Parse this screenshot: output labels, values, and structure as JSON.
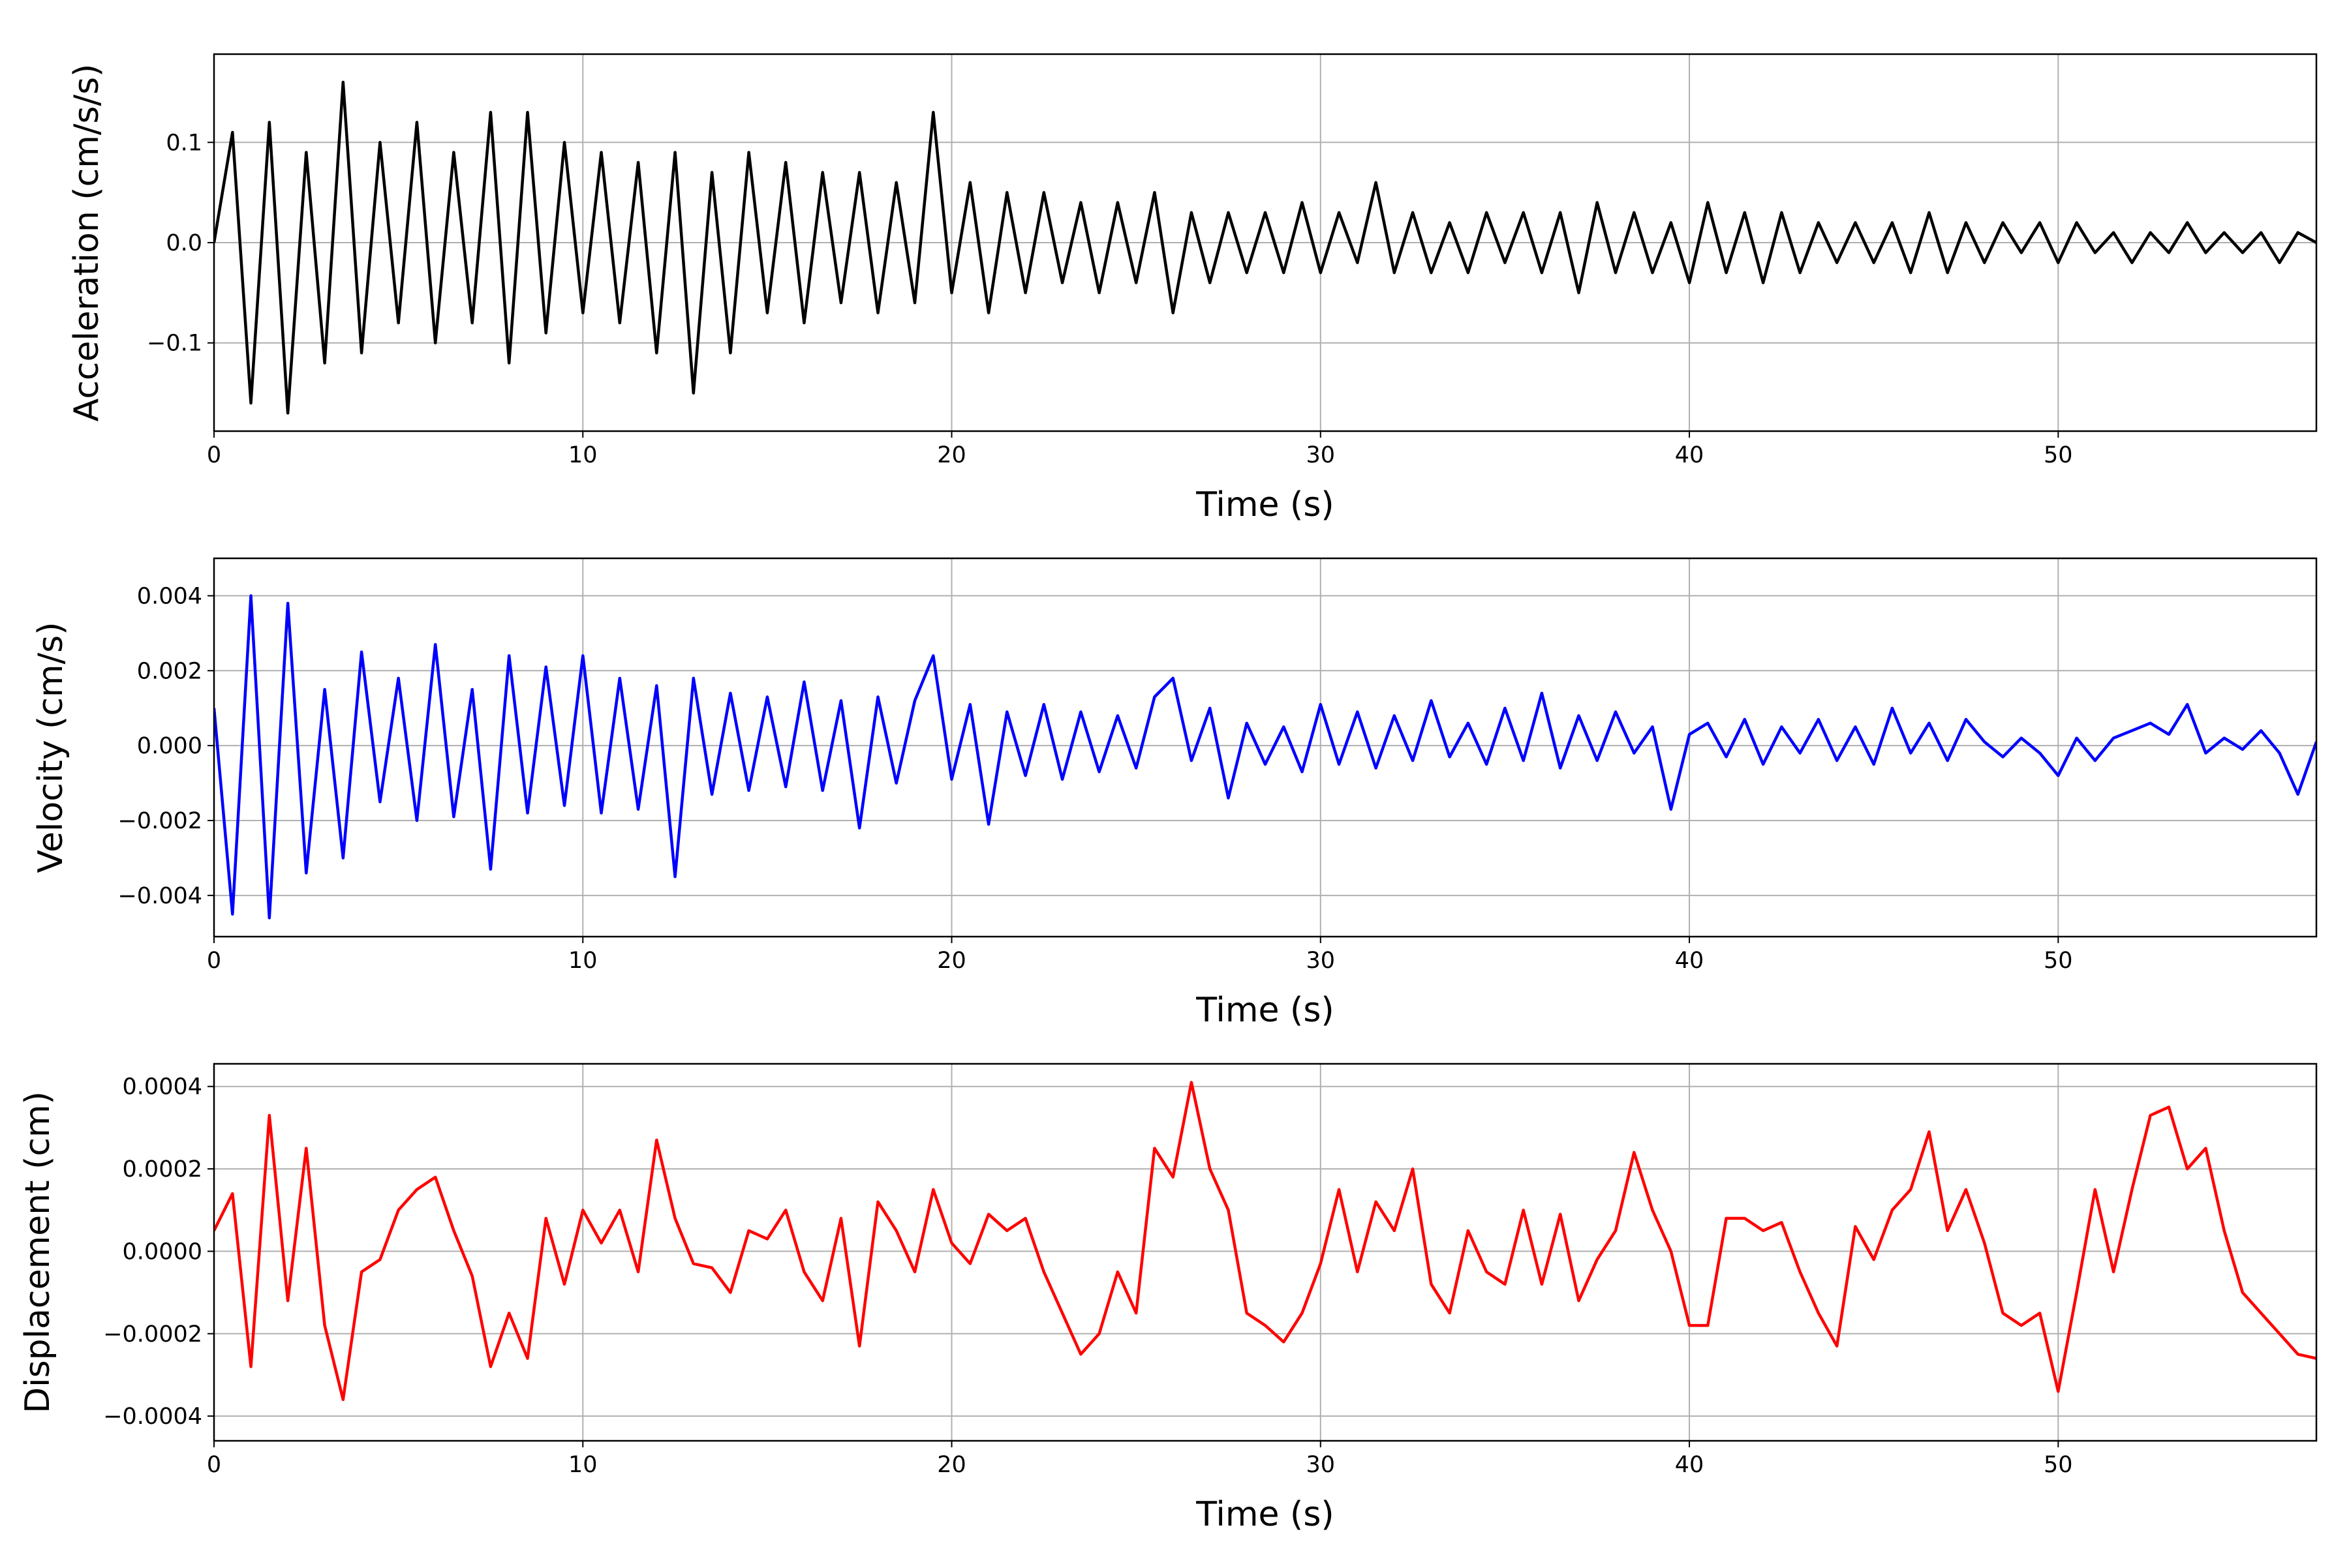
{
  "chart_data": [
    {
      "type": "line",
      "ylabel": "Acceleration (cm/s/s)",
      "xlabel": "Time (s)",
      "color": "#000000",
      "grid": true,
      "xlim": [
        0,
        57
      ],
      "xticks": [
        0,
        10,
        20,
        30,
        40,
        50
      ],
      "ylim": [
        -0.188,
        0.188
      ],
      "yticks": [
        {
          "value": -0.1,
          "label": "−0.1"
        },
        {
          "value": 0,
          "label": "0.0"
        },
        0.1
      ],
      "x": [
        0,
        0.5,
        1,
        1.5,
        2,
        2.5,
        3,
        3.5,
        4,
        4.5,
        5,
        5.5,
        6,
        6.5,
        7,
        7.5,
        8,
        8.5,
        9,
        9.5,
        10,
        10.5,
        11,
        11.5,
        12,
        12.5,
        13,
        13.5,
        14,
        14.5,
        15,
        15.5,
        16,
        16.5,
        17,
        17.5,
        18,
        18.5,
        19,
        19.5,
        20,
        20.5,
        21,
        21.5,
        22,
        22.5,
        23,
        23.5,
        24,
        24.5,
        25,
        25.5,
        26,
        26.5,
        27,
        27.5,
        28,
        28.5,
        29,
        29.5,
        30,
        30.5,
        31,
        31.5,
        32,
        32.5,
        33,
        33.5,
        34,
        34.5,
        35,
        35.5,
        36,
        36.5,
        37,
        37.5,
        38,
        38.5,
        39,
        39.5,
        40,
        40.5,
        41,
        41.5,
        42,
        42.5,
        43,
        43.5,
        44,
        44.5,
        45,
        45.5,
        46,
        46.5,
        47,
        47.5,
        48,
        48.5,
        49,
        49.5,
        50,
        50.5,
        51,
        51.5,
        52,
        52.5,
        53,
        53.5,
        54,
        54.5,
        55,
        55.5,
        56,
        56.5,
        57
      ],
      "values": [
        0.0,
        0.11,
        -0.16,
        0.12,
        -0.17,
        0.09,
        -0.12,
        0.16,
        -0.11,
        0.1,
        -0.08,
        0.12,
        -0.1,
        0.09,
        -0.08,
        0.13,
        -0.12,
        0.13,
        -0.09,
        0.1,
        -0.07,
        0.09,
        -0.08,
        0.08,
        -0.11,
        0.09,
        -0.15,
        0.07,
        -0.11,
        0.09,
        -0.07,
        0.08,
        -0.08,
        0.07,
        -0.06,
        0.07,
        -0.07,
        0.06,
        -0.06,
        0.13,
        -0.05,
        0.06,
        -0.07,
        0.05,
        -0.05,
        0.05,
        -0.04,
        0.04,
        -0.05,
        0.04,
        -0.04,
        0.05,
        -0.07,
        0.03,
        -0.04,
        0.03,
        -0.03,
        0.03,
        -0.03,
        0.04,
        -0.03,
        0.03,
        -0.02,
        0.06,
        -0.03,
        0.03,
        -0.03,
        0.02,
        -0.03,
        0.03,
        -0.02,
        0.03,
        -0.03,
        0.03,
        -0.05,
        0.04,
        -0.03,
        0.03,
        -0.03,
        0.02,
        -0.04,
        0.04,
        -0.03,
        0.03,
        -0.04,
        0.03,
        -0.03,
        0.02,
        -0.02,
        0.02,
        -0.02,
        0.02,
        -0.03,
        0.03,
        -0.03,
        0.02,
        -0.02,
        0.02,
        -0.01,
        0.02,
        -0.02,
        0.02,
        -0.01,
        0.01,
        -0.02,
        0.01,
        -0.01,
        0.02,
        -0.01,
        0.01,
        -0.01,
        0.01,
        -0.02,
        0.01,
        0.0
      ]
    },
    {
      "type": "line",
      "ylabel": "Velocity (cm/s)",
      "xlabel": "Time (s)",
      "color": "#0000ff",
      "grid": true,
      "xlim": [
        0,
        57
      ],
      "xticks": [
        0,
        10,
        20,
        30,
        40,
        50
      ],
      "ylim": [
        -0.0051,
        0.005
      ],
      "yticks": [
        {
          "value": -0.004,
          "label": "−0.004"
        },
        {
          "value": -0.002,
          "label": "−0.002"
        },
        {
          "value": 0,
          "label": "0.000"
        },
        0.002,
        0.004
      ],
      "x": [
        0,
        0.5,
        1,
        1.5,
        2,
        2.5,
        3,
        3.5,
        4,
        4.5,
        5,
        5.5,
        6,
        6.5,
        7,
        7.5,
        8,
        8.5,
        9,
        9.5,
        10,
        10.5,
        11,
        11.5,
        12,
        12.5,
        13,
        13.5,
        14,
        14.5,
        15,
        15.5,
        16,
        16.5,
        17,
        17.5,
        18,
        18.5,
        19,
        19.5,
        20,
        20.5,
        21,
        21.5,
        22,
        22.5,
        23,
        23.5,
        24,
        24.5,
        25,
        25.5,
        26,
        26.5,
        27,
        27.5,
        28,
        28.5,
        29,
        29.5,
        30,
        30.5,
        31,
        31.5,
        32,
        32.5,
        33,
        33.5,
        34,
        34.5,
        35,
        35.5,
        36,
        36.5,
        37,
        37.5,
        38,
        38.5,
        39,
        39.5,
        40,
        40.5,
        41,
        41.5,
        42,
        42.5,
        43,
        43.5,
        44,
        44.5,
        45,
        45.5,
        46,
        46.5,
        47,
        47.5,
        48,
        48.5,
        49,
        49.5,
        50,
        50.5,
        51,
        51.5,
        52,
        52.5,
        53,
        53.5,
        54,
        54.5,
        55,
        55.5,
        56,
        56.5,
        57
      ],
      "values": [
        0.001,
        -0.0045,
        0.004,
        -0.0046,
        0.0038,
        -0.0034,
        0.0015,
        -0.003,
        0.0025,
        -0.0015,
        0.0018,
        -0.002,
        0.0027,
        -0.0019,
        0.0015,
        -0.0033,
        0.0024,
        -0.0018,
        0.0021,
        -0.0016,
        0.0024,
        -0.0018,
        0.0018,
        -0.0017,
        0.0016,
        -0.0035,
        0.0018,
        -0.0013,
        0.0014,
        -0.0012,
        0.0013,
        -0.0011,
        0.0017,
        -0.0012,
        0.0012,
        -0.0022,
        0.0013,
        -0.001,
        0.0012,
        0.0024,
        -0.0009,
        0.0011,
        -0.0021,
        0.0009,
        -0.0008,
        0.0011,
        -0.0009,
        0.0009,
        -0.0007,
        0.0008,
        -0.0006,
        0.0013,
        0.0018,
        -0.0004,
        0.001,
        -0.0014,
        0.0006,
        -0.0005,
        0.0005,
        -0.0007,
        0.0011,
        -0.0005,
        0.0009,
        -0.0006,
        0.0008,
        -0.0004,
        0.0012,
        -0.0003,
        0.0006,
        -0.0005,
        0.001,
        -0.0004,
        0.0014,
        -0.0006,
        0.0008,
        -0.0004,
        0.0009,
        -0.0002,
        0.0005,
        -0.0017,
        0.0003,
        0.0006,
        -0.0003,
        0.0007,
        -0.0005,
        0.0005,
        -0.0002,
        0.0007,
        -0.0004,
        0.0005,
        -0.0005,
        0.001,
        -0.0002,
        0.0006,
        -0.0004,
        0.0007,
        0.0001,
        -0.0003,
        0.0002,
        -0.0002,
        -0.0008,
        0.0002,
        -0.0004,
        0.0002,
        0.0004,
        0.0006,
        0.0003,
        0.0011,
        -0.0002,
        0.0002,
        -0.0001,
        0.0004,
        -0.0002,
        -0.0013,
        0.0001
      ]
    },
    {
      "type": "line",
      "ylabel": "Displacement (cm)",
      "xlabel": "Time (s)",
      "color": "#ff0000",
      "grid": true,
      "xlim": [
        0,
        57
      ],
      "xticks": [
        0,
        10,
        20,
        30,
        40,
        50
      ],
      "ylim": [
        -0.00046,
        0.000455
      ],
      "yticks": [
        {
          "value": -0.0004,
          "label": "−0.0004"
        },
        {
          "value": -0.0002,
          "label": "−0.0002"
        },
        {
          "value": 0,
          "label": "0.0000"
        },
        0.0002,
        0.0004
      ],
      "x": [
        0,
        0.5,
        1,
        1.5,
        2,
        2.5,
        3,
        3.5,
        4,
        4.5,
        5,
        5.5,
        6,
        6.5,
        7,
        7.5,
        8,
        8.5,
        9,
        9.5,
        10,
        10.5,
        11,
        11.5,
        12,
        12.5,
        13,
        13.5,
        14,
        14.5,
        15,
        15.5,
        16,
        16.5,
        17,
        17.5,
        18,
        18.5,
        19,
        19.5,
        20,
        20.5,
        21,
        21.5,
        22,
        22.5,
        23,
        23.5,
        24,
        24.5,
        25,
        25.5,
        26,
        26.5,
        27,
        27.5,
        28,
        28.5,
        29,
        29.5,
        30,
        30.5,
        31,
        31.5,
        32,
        32.5,
        33,
        33.5,
        34,
        34.5,
        35,
        35.5,
        36,
        36.5,
        37,
        37.5,
        38,
        38.5,
        39,
        39.5,
        40,
        40.5,
        41,
        41.5,
        42,
        42.5,
        43,
        43.5,
        44,
        44.5,
        45,
        45.5,
        46,
        46.5,
        47,
        47.5,
        48,
        48.5,
        49,
        49.5,
        50,
        50.5,
        51,
        51.5,
        52,
        52.5,
        53,
        53.5,
        54,
        54.5,
        55,
        55.5,
        56,
        56.5,
        57
      ],
      "values": [
        5e-05,
        0.00014,
        -0.00028,
        0.00033,
        -0.00012,
        0.00025,
        -0.00018,
        -0.00036,
        -5e-05,
        -2e-05,
        0.0001,
        0.00015,
        0.00018,
        5e-05,
        -6e-05,
        -0.00028,
        -0.00015,
        -0.00026,
        8e-05,
        -8e-05,
        0.0001,
        2e-05,
        0.0001,
        -5e-05,
        0.00027,
        8e-05,
        -3e-05,
        -4e-05,
        -0.0001,
        5e-05,
        3e-05,
        0.0001,
        -5e-05,
        -0.00012,
        8e-05,
        -0.00023,
        0.00012,
        5e-05,
        -5e-05,
        0.00015,
        2e-05,
        -3e-05,
        9e-05,
        5e-05,
        8e-05,
        -5e-05,
        -0.00015,
        -0.00025,
        -0.0002,
        -5e-05,
        -0.00015,
        0.00025,
        0.00018,
        0.00041,
        0.0002,
        0.0001,
        -0.00015,
        -0.00018,
        -0.00022,
        -0.00015,
        -3e-05,
        0.00015,
        -5e-05,
        0.00012,
        5e-05,
        0.0002,
        -8e-05,
        -0.00015,
        5e-05,
        -5e-05,
        -8e-05,
        0.0001,
        -8e-05,
        9e-05,
        -0.00012,
        -2e-05,
        5e-05,
        0.00024,
        0.0001,
        0.0,
        -0.00018,
        -0.00018,
        8e-05,
        8e-05,
        5e-05,
        7e-05,
        -5e-05,
        -0.00015,
        -0.00023,
        6e-05,
        -2e-05,
        0.0001,
        0.00015,
        0.00029,
        5e-05,
        0.00015,
        2e-05,
        -0.00015,
        -0.00018,
        -0.00015,
        -0.00034,
        -0.0001,
        0.00015,
        -5e-05,
        0.00015,
        0.00033,
        0.00035,
        0.0002,
        0.00025,
        5e-05,
        -0.0001,
        -0.00015,
        -0.0002,
        -0.00025,
        -0.00026
      ]
    }
  ]
}
